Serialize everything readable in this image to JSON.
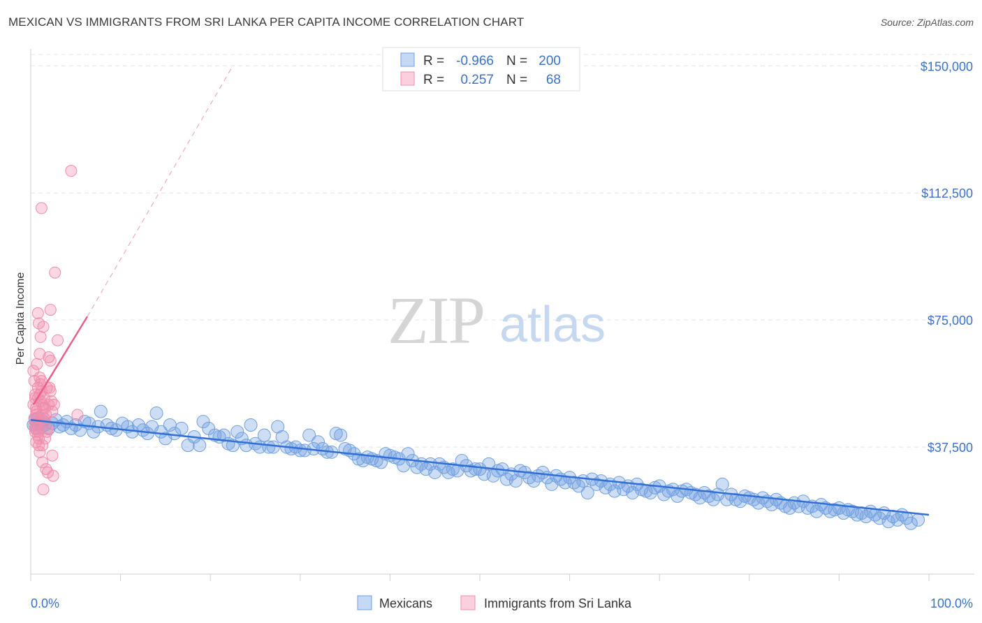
{
  "title": "MEXICAN VS IMMIGRANTS FROM SRI LANKA PER CAPITA INCOME CORRELATION CHART",
  "source": "Source: ZipAtlas.com",
  "watermark": {
    "zip": "ZIP",
    "atlas": "atlas"
  },
  "colors": {
    "blue": "#6f9fe0",
    "blue_line": "#2f6fd6",
    "pink": "#f08cab",
    "pink_line": "#e8608a",
    "grid": "#e3e3e3",
    "tick_label": "#3a72c8"
  },
  "legend": {
    "rows": [
      {
        "r_label": "R =",
        "r_value": "-0.966",
        "n_label": "N =",
        "n_value": "200"
      },
      {
        "r_label": "R =",
        "r_value": "0.257",
        "n_label": "N =",
        "n_value": "68"
      }
    ]
  },
  "bottom_legend": [
    "Mexicans",
    "Immigrants from Sri Lanka"
  ],
  "chart_data": {
    "type": "scatter",
    "title": "MEXICAN VS IMMIGRANTS FROM SRI LANKA PER CAPITA INCOME CORRELATION CHART",
    "xlabel": "",
    "ylabel": "Per Capita Income",
    "xlim": [
      0,
      100
    ],
    "ylim": [
      0,
      155000
    ],
    "x_tick_labels": [
      "0.0%",
      "100.0%"
    ],
    "y_ticks": [
      37500,
      75000,
      112500,
      150000
    ],
    "y_tick_labels": [
      "$37,500",
      "$75,000",
      "$112,500",
      "$150,000"
    ],
    "grid": true,
    "legend_position": "top-center",
    "series": [
      {
        "name": "Mexicans",
        "color": "#6f9fe0",
        "r": -0.966,
        "n": 200,
        "trend": {
          "x": [
            0,
            100
          ],
          "y": [
            45500,
            17500
          ]
        },
        "points": [
          [
            0.3,
            44000
          ],
          [
            0.5,
            45500
          ],
          [
            0.6,
            43000
          ],
          [
            0.8,
            46000
          ],
          [
            1.0,
            44500
          ],
          [
            1.2,
            43500
          ],
          [
            1.4,
            45000
          ],
          [
            1.6,
            44000
          ],
          [
            2.0,
            43000
          ],
          [
            2.4,
            44500
          ],
          [
            2.8,
            45500
          ],
          [
            3.2,
            43500
          ],
          [
            3.6,
            44000
          ],
          [
            4.0,
            45000
          ],
          [
            4.5,
            43000
          ],
          [
            5.0,
            44000
          ],
          [
            5.5,
            42500
          ],
          [
            6.0,
            45000
          ],
          [
            6.5,
            44500
          ],
          [
            7.0,
            42000
          ],
          [
            7.5,
            43500
          ],
          [
            7.8,
            48000
          ],
          [
            8.5,
            44000
          ],
          [
            9.0,
            43000
          ],
          [
            9.5,
            42500
          ],
          [
            10.2,
            44500
          ],
          [
            10.8,
            43500
          ],
          [
            11.3,
            42000
          ],
          [
            12.0,
            44000
          ],
          [
            12.5,
            42500
          ],
          [
            13.0,
            41500
          ],
          [
            13.5,
            43500
          ],
          [
            14.0,
            47500
          ],
          [
            14.5,
            42000
          ],
          [
            15.0,
            40000
          ],
          [
            15.5,
            44000
          ],
          [
            16.0,
            41500
          ],
          [
            16.8,
            43000
          ],
          [
            17.5,
            38000
          ],
          [
            18.2,
            40500
          ],
          [
            18.8,
            38000
          ],
          [
            19.2,
            45000
          ],
          [
            19.8,
            43000
          ],
          [
            20.5,
            41000
          ],
          [
            21.0,
            40500
          ],
          [
            21.5,
            41000
          ],
          [
            22.0,
            38500
          ],
          [
            22.5,
            38000
          ],
          [
            23.0,
            42000
          ],
          [
            23.5,
            40000
          ],
          [
            24.0,
            38000
          ],
          [
            24.5,
            44000
          ],
          [
            25.0,
            38500
          ],
          [
            25.5,
            37500
          ],
          [
            26.0,
            41000
          ],
          [
            26.5,
            37500
          ],
          [
            27.0,
            37500
          ],
          [
            27.5,
            43500
          ],
          [
            28.0,
            40500
          ],
          [
            28.5,
            37500
          ],
          [
            29.0,
            37000
          ],
          [
            29.5,
            37500
          ],
          [
            30.0,
            36500
          ],
          [
            30.5,
            36500
          ],
          [
            31.0,
            41000
          ],
          [
            31.5,
            37000
          ],
          [
            32.0,
            39000
          ],
          [
            32.5,
            37000
          ],
          [
            33.0,
            36000
          ],
          [
            33.5,
            36000
          ],
          [
            34.0,
            41500
          ],
          [
            34.5,
            41000
          ],
          [
            35.0,
            37000
          ],
          [
            35.5,
            36500
          ],
          [
            36.0,
            35500
          ],
          [
            36.5,
            34000
          ],
          [
            37.0,
            33500
          ],
          [
            37.5,
            34500
          ],
          [
            38.0,
            34000
          ],
          [
            38.5,
            33500
          ],
          [
            39.0,
            33000
          ],
          [
            39.5,
            35500
          ],
          [
            40.0,
            35000
          ],
          [
            40.5,
            34500
          ],
          [
            41.0,
            34000
          ],
          [
            41.5,
            32000
          ],
          [
            42.0,
            35500
          ],
          [
            42.5,
            33500
          ],
          [
            43.0,
            31500
          ],
          [
            43.5,
            32500
          ],
          [
            44.0,
            31000
          ],
          [
            44.5,
            32500
          ],
          [
            45.0,
            30000
          ],
          [
            45.5,
            32500
          ],
          [
            46.0,
            31500
          ],
          [
            46.5,
            30000
          ],
          [
            47.0,
            31000
          ],
          [
            47.5,
            30500
          ],
          [
            48.0,
            33500
          ],
          [
            48.5,
            32000
          ],
          [
            49.0,
            30500
          ],
          [
            49.5,
            31000
          ],
          [
            50.0,
            31000
          ],
          [
            50.5,
            29500
          ],
          [
            51.0,
            32500
          ],
          [
            51.5,
            29000
          ],
          [
            52.0,
            30500
          ],
          [
            52.5,
            31000
          ],
          [
            53.0,
            28000
          ],
          [
            53.5,
            29500
          ],
          [
            54.0,
            27500
          ],
          [
            54.5,
            30500
          ],
          [
            55.0,
            30000
          ],
          [
            55.5,
            28500
          ],
          [
            56.0,
            27500
          ],
          [
            56.5,
            29000
          ],
          [
            57.0,
            30000
          ],
          [
            57.5,
            28500
          ],
          [
            58.0,
            26500
          ],
          [
            58.5,
            29000
          ],
          [
            59.0,
            28000
          ],
          [
            59.5,
            27000
          ],
          [
            60.0,
            28500
          ],
          [
            60.5,
            27000
          ],
          [
            61.0,
            26000
          ],
          [
            61.5,
            27500
          ],
          [
            62.0,
            24000
          ],
          [
            62.5,
            28000
          ],
          [
            63.0,
            26500
          ],
          [
            63.5,
            27500
          ],
          [
            64.0,
            25500
          ],
          [
            64.5,
            26500
          ],
          [
            65.0,
            24500
          ],
          [
            65.5,
            27000
          ],
          [
            66.0,
            25000
          ],
          [
            66.5,
            26000
          ],
          [
            67.0,
            24000
          ],
          [
            67.5,
            26500
          ],
          [
            68.0,
            25000
          ],
          [
            68.5,
            24500
          ],
          [
            69.0,
            24000
          ],
          [
            69.5,
            25500
          ],
          [
            70.0,
            26000
          ],
          [
            70.5,
            23500
          ],
          [
            71.0,
            24500
          ],
          [
            71.5,
            25000
          ],
          [
            72.0,
            23000
          ],
          [
            72.5,
            24500
          ],
          [
            73.0,
            25000
          ],
          [
            73.5,
            24000
          ],
          [
            74.0,
            23500
          ],
          [
            74.5,
            22500
          ],
          [
            75.0,
            24000
          ],
          [
            75.5,
            23000
          ],
          [
            76.0,
            22000
          ],
          [
            76.5,
            23500
          ],
          [
            77.0,
            26500
          ],
          [
            77.5,
            22000
          ],
          [
            78.0,
            23500
          ],
          [
            78.5,
            22000
          ],
          [
            79.0,
            21500
          ],
          [
            79.5,
            23000
          ],
          [
            80.0,
            22500
          ],
          [
            80.5,
            22000
          ],
          [
            81.0,
            21000
          ],
          [
            81.5,
            22500
          ],
          [
            82.0,
            21500
          ],
          [
            82.5,
            20500
          ],
          [
            83.0,
            22000
          ],
          [
            83.5,
            21000
          ],
          [
            84.0,
            20000
          ],
          [
            84.5,
            19500
          ],
          [
            85.0,
            21000
          ],
          [
            85.5,
            20000
          ],
          [
            86.0,
            21500
          ],
          [
            86.5,
            19500
          ],
          [
            87.0,
            20000
          ],
          [
            87.5,
            18500
          ],
          [
            88.0,
            20500
          ],
          [
            88.5,
            19500
          ],
          [
            89.0,
            18500
          ],
          [
            89.5,
            19000
          ],
          [
            90.0,
            19500
          ],
          [
            90.5,
            18000
          ],
          [
            91.0,
            19000
          ],
          [
            91.5,
            18500
          ],
          [
            92.0,
            17500
          ],
          [
            92.5,
            18000
          ],
          [
            93.0,
            17000
          ],
          [
            93.5,
            18500
          ],
          [
            94.0,
            17500
          ],
          [
            94.5,
            16500
          ],
          [
            95.0,
            18000
          ],
          [
            95.5,
            15500
          ],
          [
            96.0,
            17000
          ],
          [
            96.5,
            16000
          ],
          [
            97.0,
            17500
          ],
          [
            97.5,
            16500
          ],
          [
            98.0,
            15000
          ],
          [
            98.8,
            16000
          ]
        ]
      },
      {
        "name": "Immigrants from Sri Lanka",
        "color": "#f08cab",
        "r": 0.257,
        "n": 68,
        "trend": {
          "x": [
            0.3,
            6.3
          ],
          "y": [
            50000,
            76000
          ]
        },
        "trend_extension": {
          "x": [
            6.3,
            22.5
          ],
          "y": [
            76000,
            150000
          ]
        },
        "points": [
          [
            0.3,
            50000
          ],
          [
            0.4,
            46000
          ],
          [
            0.5,
            52000
          ],
          [
            0.6,
            48000
          ],
          [
            0.7,
            44000
          ],
          [
            0.8,
            55000
          ],
          [
            0.9,
            42000
          ],
          [
            1.0,
            58000
          ],
          [
            1.1,
            51000
          ],
          [
            1.2,
            47000
          ],
          [
            0.4,
            57000
          ],
          [
            0.5,
            53000
          ],
          [
            0.6,
            49000
          ],
          [
            0.7,
            45000
          ],
          [
            0.8,
            41000
          ],
          [
            0.9,
            38000
          ],
          [
            1.0,
            36000
          ],
          [
            1.1,
            56000
          ],
          [
            1.2,
            54000
          ],
          [
            1.3,
            50000
          ],
          [
            0.3,
            60000
          ],
          [
            0.5,
            43000
          ],
          [
            0.6,
            39000
          ],
          [
            0.7,
            62000
          ],
          [
            0.8,
            77000
          ],
          [
            0.9,
            74000
          ],
          [
            1.0,
            65000
          ],
          [
            1.1,
            70000
          ],
          [
            1.3,
            33000
          ],
          [
            1.4,
            73000
          ],
          [
            1.5,
            52000
          ],
          [
            1.6,
            49000
          ],
          [
            1.7,
            47000
          ],
          [
            1.8,
            42000
          ],
          [
            1.9,
            30000
          ],
          [
            2.0,
            64000
          ],
          [
            2.1,
            55000
          ],
          [
            2.2,
            78000
          ],
          [
            2.3,
            51000
          ],
          [
            2.4,
            35000
          ],
          [
            1.2,
            108000
          ],
          [
            4.5,
            119000
          ],
          [
            2.7,
            89000
          ],
          [
            3.0,
            69000
          ],
          [
            2.5,
            29000
          ],
          [
            1.4,
            25000
          ],
          [
            1.7,
            31000
          ],
          [
            2.2,
            63000
          ],
          [
            1.5,
            46000
          ],
          [
            1.6,
            40000
          ],
          [
            0.4,
            44000
          ],
          [
            0.6,
            47000
          ],
          [
            0.8,
            52000
          ],
          [
            1.0,
            53000
          ],
          [
            1.2,
            57000
          ],
          [
            1.4,
            49000
          ],
          [
            1.6,
            45000
          ],
          [
            1.8,
            55000
          ],
          [
            2.0,
            50000
          ],
          [
            2.2,
            54000
          ],
          [
            0.5,
            42000
          ],
          [
            0.9,
            40000
          ],
          [
            1.3,
            38000
          ],
          [
            1.9,
            43000
          ],
          [
            2.6,
            50000
          ],
          [
            5.2,
            47000
          ],
          [
            2.4,
            48000
          ],
          [
            1.1,
            46000
          ]
        ]
      }
    ]
  }
}
